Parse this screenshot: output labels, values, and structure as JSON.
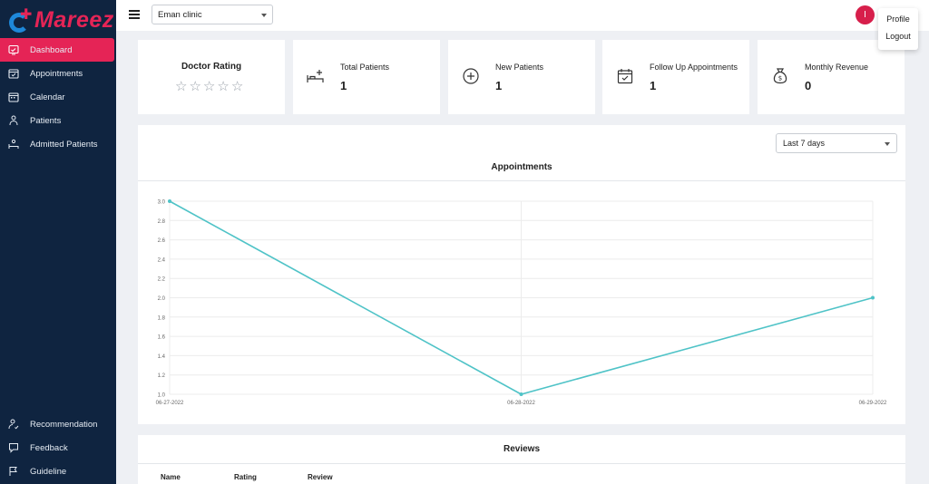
{
  "brand": {
    "name": "Mareez",
    "accent": "#e52456",
    "logo_blue": "#1e88d9"
  },
  "sidebar": {
    "bg": "#0f2440",
    "items": [
      {
        "label": "Dashboard",
        "icon": "dashboard-icon",
        "active": true
      },
      {
        "label": "Appointments",
        "icon": "calendar-check-icon"
      },
      {
        "label": "Calendar",
        "icon": "calendar-icon"
      },
      {
        "label": "Patients",
        "icon": "patient-icon"
      },
      {
        "label": "Admitted Patients",
        "icon": "bed-icon"
      }
    ],
    "bottom_items": [
      {
        "label": "Recommendation",
        "icon": "user-recommend-icon"
      },
      {
        "label": "Feedback",
        "icon": "feedback-icon"
      },
      {
        "label": "Guideline",
        "icon": "flag-icon"
      }
    ]
  },
  "topbar": {
    "clinic_selected": "Eman clinic",
    "avatar_initial": "I",
    "menu": [
      "Profile",
      "Logout"
    ]
  },
  "cards": {
    "rating": {
      "title": "Doctor Rating",
      "stars": 5,
      "filled": 0
    },
    "stats": [
      {
        "label": "Total Patients",
        "value": "1",
        "icon": "bed-plus-icon"
      },
      {
        "label": "New Patients",
        "value": "1",
        "icon": "plus-circle-icon"
      },
      {
        "label": "Follow Up Appointments",
        "value": "1",
        "icon": "calendar-check-icon"
      },
      {
        "label": "Monthly Revenue",
        "value": "0",
        "icon": "money-bag-icon"
      }
    ]
  },
  "chart": {
    "range_selected": "Last 7 days",
    "title": "Appointments"
  },
  "chart_data": {
    "type": "line",
    "title": "Appointments",
    "x": [
      "06-27-2022",
      "06-28-2022",
      "06-29-2022"
    ],
    "series": [
      {
        "values": [
          3,
          1,
          2
        ],
        "color": "#4fc3c7"
      }
    ],
    "ylim": [
      1.0,
      3.0
    ],
    "yticks": [
      "3.0",
      "2.8",
      "2.6",
      "2.4",
      "2.2",
      "2.0",
      "1.8",
      "1.6",
      "1.4",
      "1.2",
      "1.0"
    ],
    "grid": true
  },
  "reviews": {
    "title": "Reviews",
    "columns": [
      "Name",
      "Rating",
      "Review"
    ]
  }
}
